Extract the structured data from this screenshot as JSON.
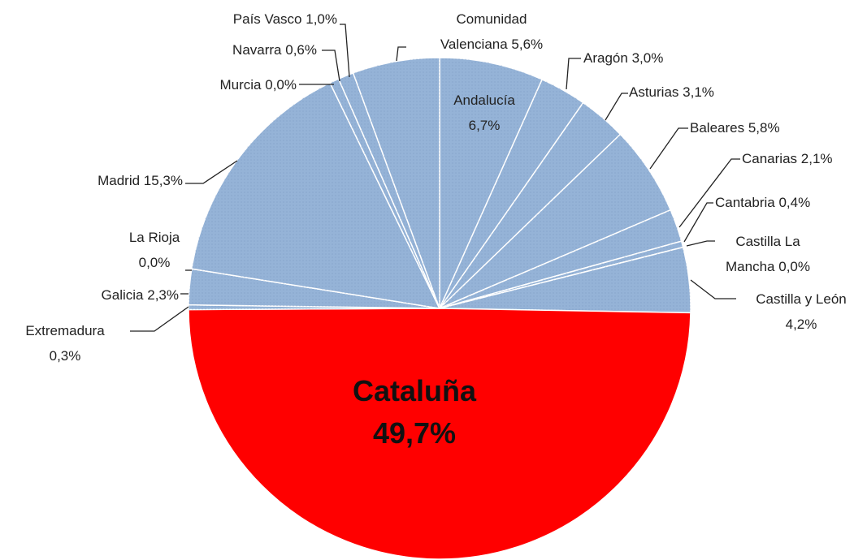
{
  "chart_data": {
    "type": "pie",
    "categories": [
      "Andalucía",
      "Aragón",
      "Asturias",
      "Baleares",
      "Canarias",
      "Cantabria",
      "Castilla La Mancha",
      "Castilla y León",
      "Cataluña",
      "Extremadura",
      "Galicia",
      "La Rioja",
      "Madrid",
      "Murcia",
      "Navarra",
      "País Vasco",
      "Comunidad Valenciana"
    ],
    "values": [
      6.7,
      3.0,
      3.1,
      5.8,
      2.1,
      0.4,
      0.0,
      4.2,
      49.7,
      0.3,
      2.3,
      0.0,
      15.3,
      0.0,
      0.6,
      1.0,
      5.6
    ],
    "value_labels": [
      "6,7%",
      "3,0%",
      "3,1%",
      "5,8%",
      "2,1%",
      "0,4%",
      "0,0%",
      "4,2%",
      "49,7%",
      "0,3%",
      "2,3%",
      "0,0%",
      "15,3%",
      "0,0%",
      "0,6%",
      "1,0%",
      "5,6%"
    ],
    "colors": [
      "#95b3d7",
      "#95b3d7",
      "#95b3d7",
      "#95b3d7",
      "#95b3d7",
      "#95b3d7",
      "#95b3d7",
      "#95b3d7",
      "#ff0000",
      "#95b3d7",
      "#95b3d7",
      "#95b3d7",
      "#95b3d7",
      "#95b3d7",
      "#95b3d7",
      "#95b3d7",
      "#95b3d7"
    ]
  }
}
